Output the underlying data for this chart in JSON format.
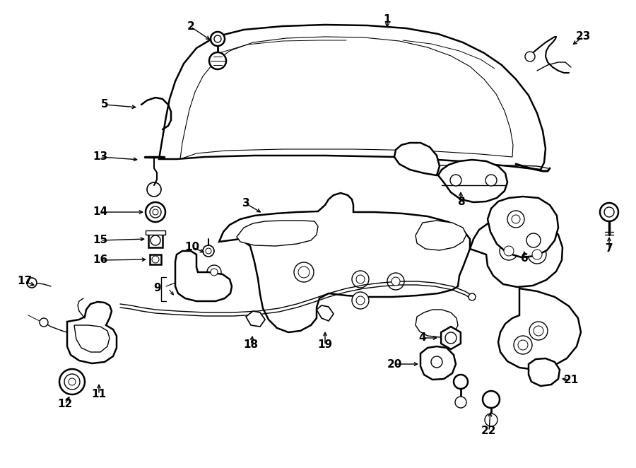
{
  "bg_color": "#ffffff",
  "line_color": "#000000",
  "fig_width": 9.0,
  "fig_height": 6.62,
  "dpi": 100,
  "lw_main": 1.8,
  "lw_thin": 1.0,
  "label_fontsize": 11,
  "label_fontweight": "bold"
}
